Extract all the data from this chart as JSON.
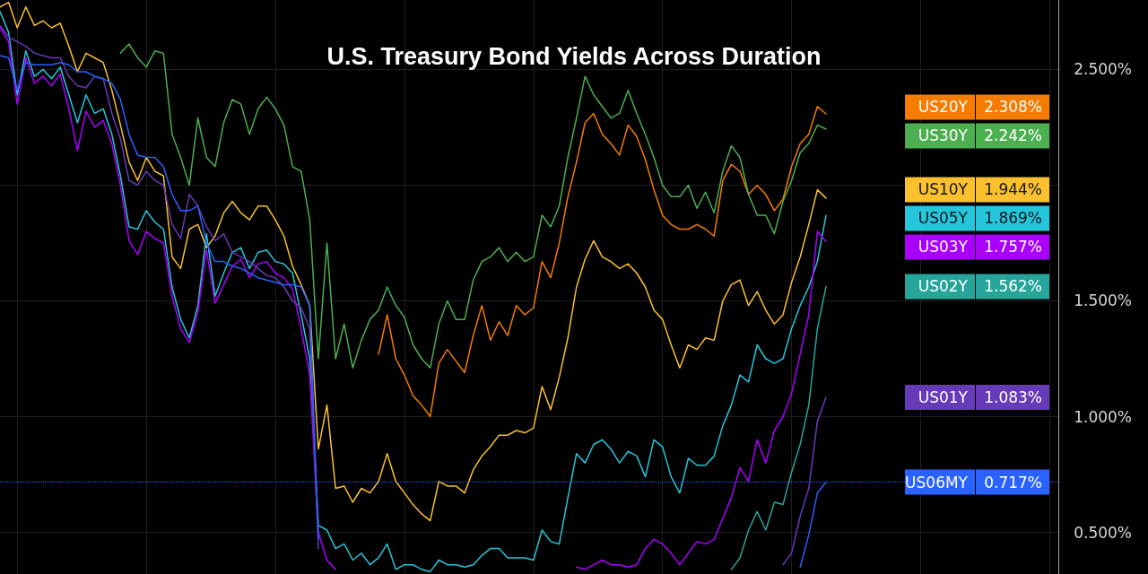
{
  "chart_data": {
    "type": "line",
    "title": "U.S. Treasury Bond Yields Across Duration",
    "categories": [
      null,
      null,
      null,
      null,
      null,
      null,
      null,
      null,
      null,
      null,
      null,
      null,
      null,
      null,
      null,
      null,
      null,
      null,
      null,
      null,
      null,
      null,
      null,
      null,
      null,
      null,
      null,
      null,
      null,
      null,
      null,
      null,
      null,
      null,
      null,
      null,
      null,
      null,
      null,
      null,
      null,
      null,
      null,
      null,
      null,
      null,
      null,
      null,
      null,
      null,
      null,
      null,
      null,
      null,
      null,
      null,
      null,
      null,
      null,
      null,
      null,
      null,
      null,
      null,
      null,
      null,
      null,
      null,
      null,
      null,
      null,
      null,
      null,
      null,
      null,
      null,
      null,
      null,
      null,
      null,
      null,
      null,
      null,
      null,
      null,
      null,
      null,
      null,
      null,
      null,
      null,
      null,
      null,
      null,
      null,
      null,
      null,
      null,
      null,
      null,
      null,
      null,
      null,
      null,
      null,
      null,
      null,
      null,
      null,
      null,
      null,
      null,
      null,
      null,
      null,
      null,
      null,
      null,
      null,
      null,
      null,
      null,
      null,
      null
    ],
    "series": [
      {
        "name": "US20Y",
        "color": "#f57c00",
        "values": [
          null,
          null,
          null,
          null,
          null,
          null,
          null,
          null,
          null,
          null,
          null,
          null,
          null,
          null,
          null,
          null,
          null,
          null,
          null,
          null,
          null,
          null,
          null,
          null,
          null,
          null,
          null,
          null,
          null,
          null,
          null,
          null,
          null,
          null,
          null,
          null,
          null,
          null,
          null,
          null,
          null,
          null,
          null,
          null,
          1.27,
          1.44,
          1.25,
          1.18,
          1.09,
          1.05,
          1.0,
          1.23,
          1.29,
          1.24,
          1.19,
          1.35,
          1.48,
          1.33,
          1.41,
          1.35,
          1.48,
          1.44,
          1.47,
          1.67,
          1.6,
          1.75,
          1.95,
          2.1,
          2.27,
          2.31,
          2.22,
          2.18,
          2.13,
          2.26,
          2.21,
          2.11,
          1.98,
          1.87,
          1.83,
          1.81,
          1.81,
          1.83,
          1.81,
          1.78,
          2.02,
          2.09,
          2.06,
          1.96,
          2.0,
          1.96,
          1.89,
          1.94,
          2.08,
          2.18,
          2.22,
          2.34,
          2.308,
          null,
          null,
          null,
          null,
          null,
          null,
          null,
          null,
          null,
          null,
          null,
          null,
          null,
          null,
          null,
          null,
          null,
          null,
          null,
          null,
          null,
          null,
          null,
          null,
          null,
          null,
          null
        ]
      },
      {
        "name": "US30Y",
        "color": "#4caf50",
        "values": [
          null,
          null,
          null,
          null,
          null,
          null,
          null,
          null,
          null,
          null,
          null,
          null,
          null,
          null,
          2.57,
          2.61,
          2.55,
          2.51,
          2.58,
          2.57,
          2.22,
          2.12,
          2.0,
          2.29,
          2.12,
          2.08,
          2.27,
          2.37,
          2.35,
          2.22,
          2.33,
          2.38,
          2.33,
          2.26,
          2.08,
          2.06,
          1.85,
          1.25,
          1.75,
          1.25,
          1.4,
          1.21,
          1.33,
          1.42,
          1.46,
          1.56,
          1.48,
          1.43,
          1.31,
          1.25,
          1.21,
          1.4,
          1.5,
          1.42,
          1.42,
          1.59,
          1.67,
          1.69,
          1.73,
          1.67,
          1.71,
          1.67,
          1.69,
          1.87,
          1.82,
          1.91,
          2.12,
          2.29,
          2.47,
          2.39,
          2.34,
          2.29,
          2.31,
          2.41,
          2.31,
          2.22,
          2.12,
          2.0,
          1.95,
          1.95,
          2.0,
          1.9,
          1.97,
          1.88,
          2.06,
          2.17,
          2.12,
          1.96,
          1.87,
          1.87,
          1.79,
          1.93,
          2.02,
          2.14,
          2.18,
          2.26,
          2.242,
          null,
          null,
          null,
          null,
          null,
          null,
          null,
          null,
          null,
          null,
          null,
          null,
          null,
          null,
          null,
          null,
          null,
          null,
          null,
          null,
          null,
          null,
          null,
          null,
          null,
          null,
          null
        ]
      },
      {
        "name": "US10Y",
        "color": "#fbc02d",
        "values": [
          2.77,
          2.79,
          2.68,
          2.77,
          2.69,
          2.71,
          2.68,
          2.7,
          2.6,
          2.49,
          2.57,
          2.55,
          2.53,
          2.41,
          2.26,
          2.1,
          2.02,
          2.12,
          2.06,
          2.04,
          1.69,
          1.64,
          1.81,
          1.83,
          1.73,
          1.78,
          1.88,
          1.93,
          1.88,
          1.85,
          1.91,
          1.91,
          1.85,
          1.78,
          1.65,
          1.57,
          1.48,
          0.86,
          1.05,
          0.69,
          0.7,
          0.63,
          0.69,
          0.67,
          0.72,
          0.84,
          0.72,
          0.67,
          0.62,
          0.58,
          0.55,
          0.72,
          0.7,
          0.7,
          0.67,
          0.77,
          0.83,
          0.87,
          0.92,
          0.92,
          0.94,
          0.93,
          0.95,
          1.13,
          1.03,
          1.17,
          1.34,
          1.56,
          1.68,
          1.76,
          1.69,
          1.67,
          1.64,
          1.66,
          1.62,
          1.56,
          1.46,
          1.42,
          1.31,
          1.21,
          1.31,
          1.29,
          1.34,
          1.33,
          1.5,
          1.57,
          1.59,
          1.48,
          1.54,
          1.46,
          1.4,
          1.44,
          1.58,
          1.69,
          1.83,
          1.98,
          1.944,
          null,
          null,
          null,
          null,
          null,
          null,
          null,
          null,
          null,
          null,
          null,
          null,
          null,
          null,
          null,
          null,
          null,
          null,
          null,
          null,
          null,
          null,
          null,
          null,
          null,
          null,
          null
        ]
      },
      {
        "name": "US05Y",
        "color": "#26c6da",
        "values": [
          2.75,
          2.66,
          2.39,
          2.58,
          2.47,
          2.5,
          2.46,
          2.51,
          2.39,
          2.27,
          2.39,
          2.31,
          2.33,
          2.22,
          2.04,
          1.82,
          1.81,
          1.89,
          1.84,
          1.81,
          1.56,
          1.42,
          1.34,
          1.48,
          1.79,
          1.52,
          1.62,
          1.71,
          1.73,
          1.64,
          1.71,
          1.72,
          1.67,
          1.66,
          1.62,
          1.44,
          1.25,
          0.53,
          0.51,
          0.43,
          0.45,
          0.38,
          0.41,
          0.36,
          0.39,
          0.45,
          0.34,
          0.36,
          0.36,
          0.34,
          0.33,
          0.38,
          0.36,
          0.36,
          0.35,
          0.36,
          0.4,
          0.43,
          0.43,
          0.39,
          0.39,
          0.39,
          0.38,
          0.51,
          0.46,
          0.45,
          0.65,
          0.84,
          0.8,
          0.88,
          0.9,
          0.86,
          0.8,
          0.85,
          0.83,
          0.74,
          0.9,
          0.87,
          0.74,
          0.67,
          0.82,
          0.79,
          0.79,
          0.83,
          0.96,
          1.05,
          1.18,
          1.15,
          1.31,
          1.25,
          1.23,
          1.25,
          1.38,
          1.48,
          1.56,
          1.67,
          1.869,
          null,
          null,
          null,
          null,
          null,
          null,
          null,
          null,
          null,
          null,
          null,
          null,
          null,
          null,
          null,
          null,
          null,
          null,
          null,
          null,
          null,
          null,
          null,
          null,
          null,
          null,
          null
        ]
      },
      {
        "name": "US03Y",
        "color": "#aa00ff",
        "values": [
          2.68,
          2.62,
          2.35,
          2.55,
          2.44,
          2.47,
          2.43,
          2.48,
          2.33,
          2.15,
          2.32,
          2.25,
          2.28,
          2.18,
          2.0,
          1.76,
          1.7,
          1.8,
          1.77,
          1.75,
          1.52,
          1.38,
          1.32,
          1.45,
          1.72,
          1.49,
          1.57,
          1.65,
          1.68,
          1.6,
          1.66,
          1.67,
          1.62,
          1.6,
          1.55,
          1.38,
          1.18,
          0.5,
          0.38,
          0.34,
          null,
          null,
          null,
          null,
          null,
          null,
          null,
          null,
          null,
          null,
          null,
          null,
          null,
          null,
          null,
          null,
          null,
          null,
          null,
          null,
          null,
          null,
          null,
          null,
          null,
          null,
          null,
          0.35,
          0.34,
          0.36,
          0.38,
          0.36,
          0.36,
          0.35,
          0.36,
          0.43,
          0.47,
          0.45,
          0.41,
          0.36,
          0.41,
          0.46,
          0.45,
          0.47,
          0.56,
          0.65,
          0.78,
          0.72,
          0.9,
          0.8,
          0.94,
          1.0,
          1.1,
          1.27,
          1.44,
          1.8,
          1.757,
          null,
          null,
          null,
          null,
          null,
          null,
          null,
          null,
          null,
          null,
          null,
          null,
          null,
          null,
          null,
          null,
          null,
          null,
          null,
          null,
          null,
          null,
          null,
          null,
          null,
          null,
          null
        ]
      },
      {
        "name": "US02Y",
        "color": "#26a69a",
        "values": [
          null,
          null,
          null,
          null,
          null,
          null,
          null,
          null,
          null,
          null,
          null,
          null,
          null,
          null,
          null,
          null,
          null,
          null,
          null,
          null,
          null,
          null,
          null,
          null,
          null,
          null,
          null,
          null,
          null,
          null,
          null,
          null,
          null,
          null,
          null,
          null,
          null,
          null,
          null,
          null,
          null,
          null,
          null,
          null,
          null,
          null,
          null,
          null,
          null,
          null,
          null,
          null,
          null,
          null,
          null,
          null,
          null,
          null,
          null,
          null,
          null,
          null,
          null,
          null,
          null,
          null,
          null,
          null,
          null,
          null,
          null,
          null,
          null,
          null,
          null,
          null,
          null,
          null,
          null,
          null,
          null,
          null,
          null,
          null,
          null,
          0.34,
          0.39,
          0.51,
          0.59,
          0.51,
          0.63,
          0.62,
          0.76,
          0.88,
          1.05,
          1.38,
          1.562,
          null,
          null,
          null,
          null,
          null,
          null,
          null,
          null,
          null,
          null,
          null,
          null,
          null,
          null,
          null,
          null,
          null,
          null,
          null,
          null,
          null,
          null,
          null,
          null,
          null,
          null,
          null
        ]
      },
      {
        "name": "US01Y",
        "color": "#673ab7",
        "values": [
          2.69,
          2.64,
          2.62,
          2.6,
          2.57,
          2.56,
          2.55,
          2.55,
          2.47,
          2.43,
          2.42,
          2.47,
          2.46,
          2.31,
          2.2,
          2.02,
          2.0,
          2.06,
          2.02,
          2.0,
          1.83,
          1.77,
          1.96,
          1.91,
          1.82,
          1.76,
          1.79,
          1.71,
          1.69,
          1.67,
          1.64,
          1.61,
          1.6,
          1.56,
          1.5,
          1.47,
          1.38,
          0.43,
          null,
          null,
          null,
          null,
          null,
          null,
          null,
          null,
          null,
          null,
          null,
          null,
          null,
          null,
          null,
          null,
          null,
          null,
          null,
          null,
          null,
          null,
          null,
          null,
          null,
          null,
          null,
          null,
          null,
          null,
          null,
          null,
          null,
          null,
          null,
          null,
          null,
          null,
          null,
          null,
          null,
          null,
          null,
          null,
          null,
          null,
          null,
          null,
          null,
          null,
          null,
          null,
          null,
          0.36,
          0.41,
          0.57,
          0.69,
          0.98,
          1.083,
          null,
          null,
          null,
          null,
          null,
          null,
          null,
          null,
          null,
          null,
          null,
          null,
          null,
          null,
          null,
          null,
          null,
          null,
          null,
          null,
          null,
          null,
          null,
          null,
          null,
          null,
          null
        ]
      },
      {
        "name": "US06MY",
        "color": "#2962ff",
        "values": [
          2.56,
          2.55,
          2.41,
          2.53,
          2.52,
          2.52,
          2.52,
          2.53,
          2.52,
          2.49,
          2.49,
          2.47,
          2.46,
          2.44,
          2.37,
          2.22,
          2.13,
          2.12,
          2.12,
          2.08,
          1.96,
          1.89,
          1.89,
          1.91,
          1.75,
          1.67,
          1.67,
          1.65,
          1.64,
          1.62,
          1.6,
          1.59,
          1.58,
          1.57,
          1.57,
          1.56,
          1.48,
          0.47,
          null,
          null,
          null,
          null,
          null,
          null,
          null,
          null,
          null,
          null,
          null,
          null,
          null,
          null,
          null,
          null,
          null,
          null,
          null,
          null,
          null,
          null,
          null,
          null,
          null,
          null,
          null,
          null,
          null,
          null,
          null,
          null,
          null,
          null,
          null,
          null,
          null,
          null,
          null,
          null,
          null,
          null,
          null,
          null,
          null,
          null,
          null,
          null,
          null,
          null,
          null,
          null,
          null,
          null,
          null,
          0.35,
          0.49,
          0.67,
          0.717,
          null,
          null,
          null,
          null,
          null,
          null,
          null,
          null,
          null,
          null,
          null,
          null,
          null,
          null,
          null,
          null,
          null,
          null,
          null,
          null,
          null,
          null,
          null,
          null,
          null,
          null,
          null
        ]
      }
    ],
    "annotations": [
      "2.308%",
      "2.242%",
      "1.944%",
      "1.869%",
      "1.757%",
      "1.562%",
      "1.083%",
      "0.717%"
    ],
    "ylim": [
      0.32,
      2.8
    ],
    "yticks": [
      {
        "value": 0.5,
        "label": "0.500%"
      },
      {
        "value": 1,
        "label": "1.000%"
      },
      {
        "value": 1.5,
        "label": "1.500%"
      },
      {
        "value": 2,
        "label": null
      },
      {
        "value": 2.5,
        "label": "2.500%"
      }
    ],
    "grid": true,
    "tick_labels": "y",
    "legend": "right",
    "ref_lines": [
      {
        "axis": "y",
        "value": 0.717,
        "color": "#2962ff",
        "line_style": "dotted"
      }
    ]
  }
}
